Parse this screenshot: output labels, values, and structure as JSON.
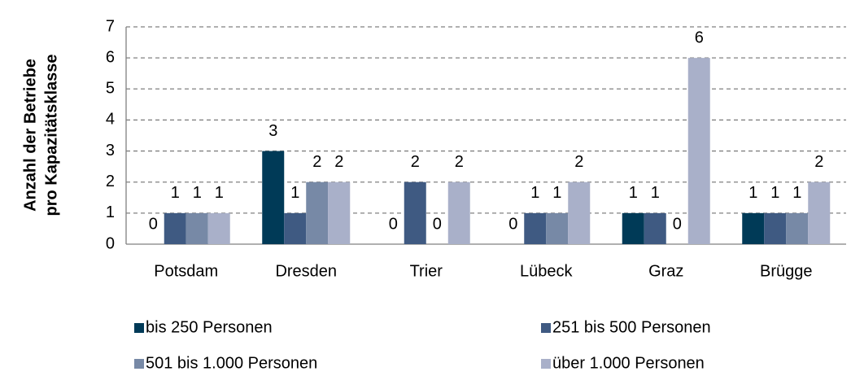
{
  "chart_data": {
    "type": "bar",
    "y_label": [
      "Anzahl der Betriebe",
      "pro Kapazitätsklasse"
    ],
    "categories": [
      "Potsdam",
      "Dresden",
      "Trier",
      "Lübeck",
      "Graz",
      "Brügge"
    ],
    "series": [
      {
        "name": "bis 250 Personen",
        "color": "#003a57",
        "values": [
          0,
          3,
          0,
          0,
          1,
          1
        ]
      },
      {
        "name": "251 bis 500 Personen",
        "color": "#3f5a82",
        "values": [
          1,
          1,
          2,
          1,
          1,
          1
        ]
      },
      {
        "name": "501 bis 1.000 Personen",
        "color": "#7789a6",
        "values": [
          1,
          2,
          0,
          1,
          0,
          1
        ]
      },
      {
        "name": "über 1.000 Personen",
        "color": "#a9b0c9",
        "values": [
          1,
          2,
          2,
          2,
          6,
          2
        ]
      }
    ],
    "ylim": [
      0,
      7
    ],
    "yticks": [
      0,
      1,
      2,
      3,
      4,
      5,
      6,
      7
    ],
    "grid": true,
    "legend": "bottom"
  }
}
